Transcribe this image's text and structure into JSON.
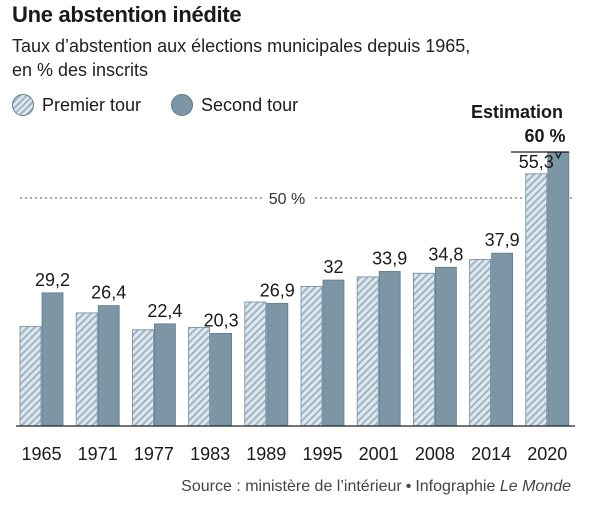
{
  "title": "Une abstention inédite",
  "subtitle_line1": "Taux d’abstention aux élections municipales depuis 1965,",
  "subtitle_line2": "en % des inscrits",
  "legend": {
    "premier": "Premier tour",
    "second": "Second tour"
  },
  "source": {
    "text": "Source : ministère de l’intérieur",
    "credit": "Infographie",
    "publication": "Le Monde"
  },
  "colors": {
    "second_fill": "#7d96a6",
    "stroke": "#5f7b8b",
    "hatch_light": "#dfe8ee",
    "hatch_dark": "#9fb5c4"
  },
  "chart_data": {
    "type": "bar",
    "categories": [
      "1965",
      "1971",
      "1977",
      "1983",
      "1989",
      "1995",
      "2001",
      "2008",
      "2014",
      "2020"
    ],
    "series": [
      {
        "name": "Premier tour",
        "values": [
          21.8,
          24.8,
          21.1,
          21.6,
          27.2,
          30.6,
          32.7,
          33.5,
          36.5,
          55.3
        ]
      },
      {
        "name": "Second tour",
        "values": [
          29.2,
          26.4,
          22.4,
          20.3,
          26.9,
          32,
          33.9,
          34.8,
          37.9,
          60
        ]
      }
    ],
    "value_labels": [
      "29,2",
      "26,4",
      "22,4",
      "20,3",
      "26,9",
      "32",
      "33,9",
      "34,8",
      "37,9"
    ],
    "premier_2020_label": "55,3",
    "estimate_label": "Estimation",
    "estimate_value": "60 %",
    "reference_line": {
      "value": 50,
      "label": "50 %"
    },
    "ylim": [
      0,
      62
    ]
  }
}
